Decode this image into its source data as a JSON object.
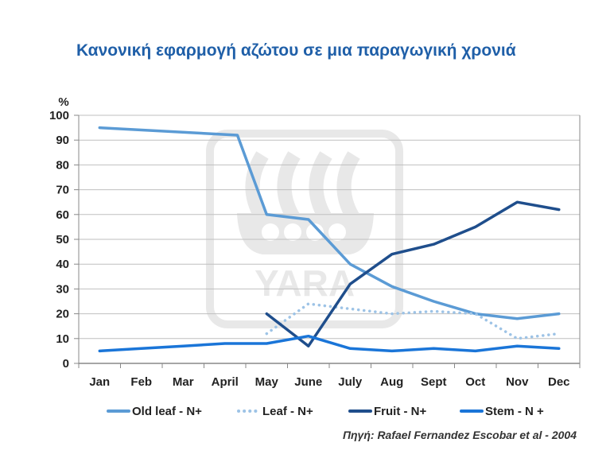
{
  "header": {
    "title": "Κανονική εφαρμογή αζώτου σε μια παραγωγική χρονιά"
  },
  "source": "Πηγή: Rafael Fernandez Escobar et al - 2004",
  "watermark": "YARA",
  "colors": {
    "old_leaf": "#5b9bd5",
    "leaf": "#9dc3e6",
    "fruit": "#1f4e8c",
    "stem": "#1a75d8",
    "title": "#1f5fa8",
    "grid": "#bfbfbf",
    "axis": "#888888"
  },
  "chart_data": {
    "type": "line",
    "title": "Κανονική εφαρμογή αζώτου σε μια παραγωγική χρονιά",
    "ylabel": "%",
    "xlabel": "",
    "ylim": [
      0,
      100
    ],
    "yticks": [
      0,
      10,
      20,
      30,
      40,
      50,
      60,
      70,
      80,
      90,
      100
    ],
    "grid": "horizontal",
    "legend": "bottom",
    "categories": [
      "Jan",
      "Feb",
      "Mar",
      "April",
      "May",
      "June",
      "July",
      "Aug",
      "Sept",
      "Oct",
      "Nov",
      "Dec"
    ],
    "series": [
      {
        "name": "Old leaf - N+",
        "style": "solid",
        "color": "#5b9bd5",
        "values": [
          95,
          null,
          null,
          92,
          60,
          58,
          40,
          31,
          25,
          20,
          18,
          20
        ],
        "points": [
          [
            0,
            95
          ],
          [
            3.3,
            92
          ],
          [
            4,
            60
          ],
          [
            5,
            58
          ],
          [
            6,
            40
          ],
          [
            7,
            31
          ],
          [
            8,
            25
          ],
          [
            9,
            20
          ],
          [
            10,
            18
          ],
          [
            11,
            20
          ]
        ]
      },
      {
        "name": "Leaf - N+",
        "style": "dotted",
        "color": "#9dc3e6",
        "values": [
          null,
          null,
          null,
          null,
          12,
          24,
          22,
          20,
          21,
          20,
          10,
          12
        ]
      },
      {
        "name": "Fruit - N+",
        "style": "solid",
        "color": "#1f4e8c",
        "values": [
          null,
          null,
          null,
          null,
          20,
          7,
          32,
          44,
          48,
          55,
          65,
          62
        ]
      },
      {
        "name": "Stem - N +",
        "style": "solid",
        "color": "#1a75d8",
        "values": [
          5,
          6,
          7,
          8,
          8,
          11,
          6,
          5,
          6,
          5,
          7,
          6
        ]
      }
    ]
  }
}
